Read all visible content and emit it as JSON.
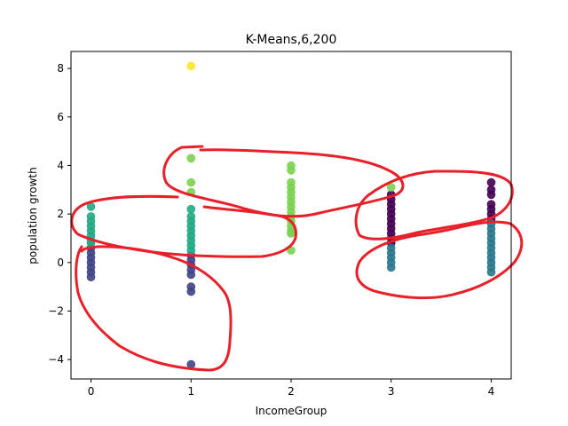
{
  "chart_data": {
    "type": "scatter",
    "title": "K-Means,6,200",
    "xlabel": "IncomeGroup",
    "ylabel": "population growth",
    "xlim": [
      -0.2,
      4.2
    ],
    "ylim": [
      -4.8,
      8.7
    ],
    "xticks": [
      0,
      1,
      2,
      3,
      4
    ],
    "yticks": [
      -4,
      -2,
      0,
      2,
      4,
      6,
      8
    ],
    "grid": false,
    "series": [
      {
        "color": "#440154",
        "points": [
          [
            3,
            0.8
          ],
          [
            3,
            1.0
          ],
          [
            3,
            1.2
          ],
          [
            3,
            1.4
          ],
          [
            3,
            1.6
          ],
          [
            3,
            1.8
          ],
          [
            3,
            2.0
          ],
          [
            3,
            2.2
          ],
          [
            3,
            2.4
          ],
          [
            3,
            2.6
          ],
          [
            3,
            2.8
          ],
          [
            4,
            2.4
          ],
          [
            4,
            2.2
          ],
          [
            4,
            2.0
          ],
          [
            4,
            1.8
          ],
          [
            4,
            2.8
          ],
          [
            4,
            3.0
          ],
          [
            4,
            3.3
          ]
        ]
      },
      {
        "color": "#414487",
        "points": [
          [
            0,
            0.6
          ],
          [
            0,
            0.4
          ],
          [
            0,
            0.2
          ],
          [
            0,
            0.0
          ],
          [
            0,
            -0.2
          ],
          [
            0,
            -0.4
          ],
          [
            0,
            -0.6
          ],
          [
            1,
            0.3
          ],
          [
            1,
            0.1
          ],
          [
            1,
            -0.1
          ],
          [
            1,
            -0.3
          ],
          [
            1,
            -0.5
          ],
          [
            1,
            -1.0
          ],
          [
            1,
            -1.2
          ],
          [
            1,
            -4.2
          ]
        ]
      },
      {
        "color": "#2a788e",
        "points": [
          [
            3,
            0.6
          ],
          [
            3,
            0.4
          ],
          [
            3,
            0.2
          ],
          [
            3,
            0.0
          ],
          [
            3,
            -0.2
          ],
          [
            4,
            1.6
          ],
          [
            4,
            1.4
          ],
          [
            4,
            1.2
          ],
          [
            4,
            1.0
          ],
          [
            4,
            0.8
          ],
          [
            4,
            0.6
          ],
          [
            4,
            0.4
          ],
          [
            4,
            0.2
          ],
          [
            4,
            0.0
          ],
          [
            4,
            -0.2
          ],
          [
            4,
            -0.4
          ]
        ]
      },
      {
        "color": "#22a884",
        "points": [
          [
            0,
            2.3
          ],
          [
            0,
            1.9
          ],
          [
            0,
            1.7
          ],
          [
            0,
            1.5
          ],
          [
            0,
            1.3
          ],
          [
            0,
            1.1
          ],
          [
            0,
            0.9
          ],
          [
            0,
            0.8
          ],
          [
            1,
            2.2
          ],
          [
            1,
            1.9
          ],
          [
            1,
            1.7
          ],
          [
            1,
            1.5
          ],
          [
            1,
            1.3
          ],
          [
            1,
            1.1
          ],
          [
            1,
            0.9
          ],
          [
            1,
            0.7
          ],
          [
            1,
            0.5
          ]
        ]
      },
      {
        "color": "#7ad151",
        "points": [
          [
            1,
            4.3
          ],
          [
            1,
            3.3
          ],
          [
            1,
            2.9
          ],
          [
            2,
            4.0
          ],
          [
            2,
            3.8
          ],
          [
            2,
            3.3
          ],
          [
            2,
            3.1
          ],
          [
            2,
            2.9
          ],
          [
            2,
            2.7
          ],
          [
            2,
            2.5
          ],
          [
            2,
            2.3
          ],
          [
            2,
            2.1
          ],
          [
            2,
            1.9
          ],
          [
            2,
            1.7
          ],
          [
            2,
            1.5
          ],
          [
            2,
            1.3
          ],
          [
            2,
            1.2
          ],
          [
            2,
            0.5
          ],
          [
            3,
            3.1
          ]
        ]
      },
      {
        "color": "#fde725",
        "points": [
          [
            1,
            8.1
          ]
        ]
      }
    ]
  }
}
